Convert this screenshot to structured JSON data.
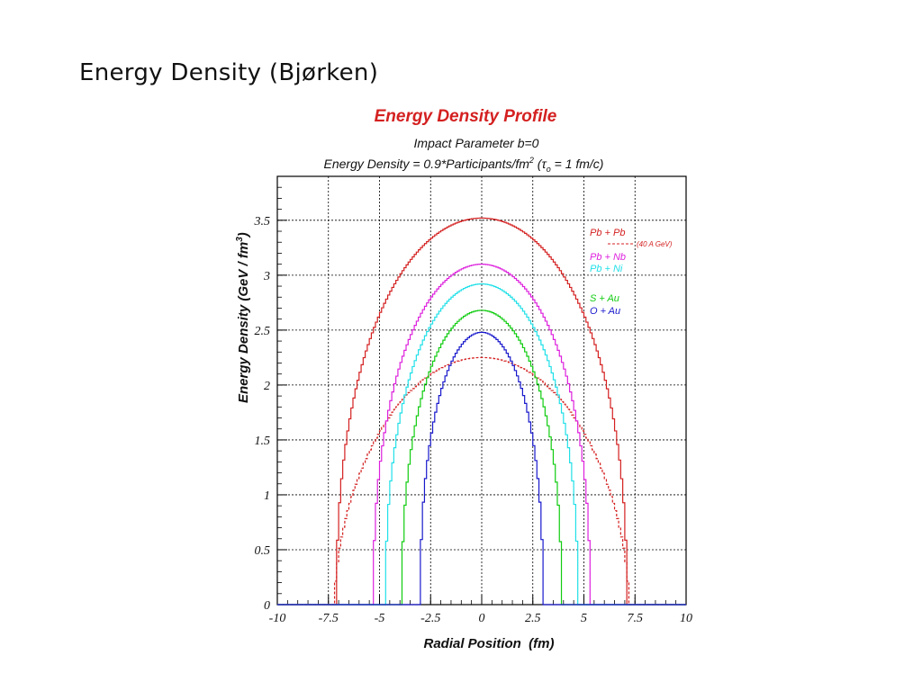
{
  "slide": {
    "title": "Energy Density (Bjørken)"
  },
  "chart_data": {
    "type": "line",
    "title": "Energy Density Profile",
    "subtitle1": "Impact Parameter b=0",
    "subtitle2": {
      "prefix": "Energy Density = 0.9*Participants/fm",
      "sup": "2",
      "mid": " (τ",
      "sub": "o",
      "suffix": " = 1 fm/c)"
    },
    "xlabel": "Radial Position  (fm)",
    "ylabel": {
      "main": "Energy Density (GeV / fm",
      "sup": "3",
      "end": ")"
    },
    "xlim": [
      -10,
      10
    ],
    "ylim": [
      0,
      3.9
    ],
    "xticks": [
      "-10",
      "-7.5",
      "-5",
      "-2.5",
      "0",
      "2.5",
      "5",
      "7.5",
      "10"
    ],
    "yticks": [
      "0",
      "0.5",
      "1",
      "1.5",
      "2",
      "2.5",
      "3",
      "3.5"
    ],
    "grid": true,
    "legend_position": "top-right",
    "series": [
      {
        "name": "Pb + Pb",
        "color": "#d42020",
        "dashed": false,
        "peak": 3.52,
        "radius": 7.1,
        "note": ""
      },
      {
        "name": "",
        "color": "#d42020",
        "dashed": true,
        "peak": 2.25,
        "radius": 7.2,
        "note": "(40 A GeV)"
      },
      {
        "name": "Pb + Nb",
        "color": "#dd20dd",
        "dashed": false,
        "peak": 3.1,
        "radius": 5.3,
        "note": ""
      },
      {
        "name": "Pb + Ni",
        "color": "#20e0e8",
        "dashed": false,
        "peak": 2.92,
        "radius": 4.7,
        "note": ""
      },
      {
        "name": "S + Au",
        "color": "#10cc10",
        "dashed": false,
        "peak": 2.68,
        "radius": 3.9,
        "note": ""
      },
      {
        "name": "O + Au",
        "color": "#1818cc",
        "dashed": false,
        "peak": 2.48,
        "radius": 3.0,
        "note": ""
      }
    ]
  }
}
